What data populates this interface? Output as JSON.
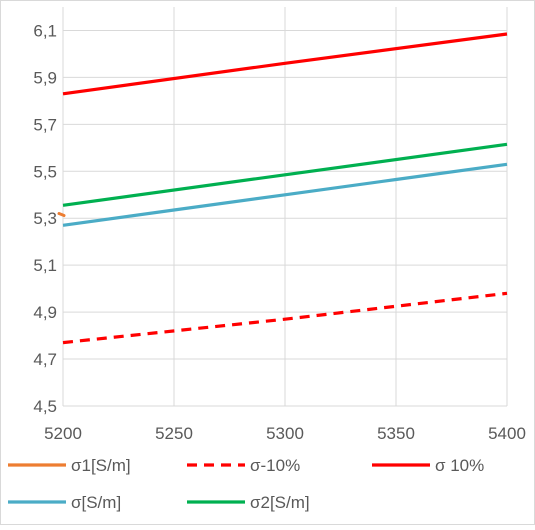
{
  "chart_data": {
    "type": "line",
    "title": "",
    "xlabel": "",
    "ylabel": "",
    "xlim": [
      5200,
      5400
    ],
    "ylim": [
      4.5,
      6.2
    ],
    "grid": true,
    "legend_position": "bottom",
    "x_ticks": [
      5200,
      5250,
      5300,
      5350,
      5400
    ],
    "x_tick_labels": [
      "5200",
      "5250",
      "5300",
      "5350",
      "5400"
    ],
    "y_ticks": [
      4.5,
      4.7,
      4.9,
      5.1,
      5.3,
      5.5,
      5.7,
      5.9,
      6.1
    ],
    "y_tick_labels": [
      "4,5",
      "4,7",
      "4,9",
      "5,1",
      "5,3",
      "5,5",
      "5,7",
      "5,9",
      "6,1"
    ],
    "series": [
      {
        "name": "σ1[S/m]",
        "color": "#ED7D31",
        "style": "solid",
        "x": [
          5200
        ],
        "y": [
          5.32
        ]
      },
      {
        "name": "σ-10%",
        "color": "#FF0000",
        "style": "dashed",
        "x": [
          5200,
          5300,
          5400
        ],
        "y": [
          4.77,
          4.87,
          4.98
        ]
      },
      {
        "name": "σ 10%",
        "color": "#FF0000",
        "style": "solid",
        "x": [
          5200,
          5300,
          5400
        ],
        "y": [
          5.83,
          5.96,
          6.085
        ]
      },
      {
        "name": "σ[S/m]",
        "color": "#4BACC6",
        "style": "solid",
        "x": [
          5200,
          5250,
          5300,
          5350,
          5400
        ],
        "y": [
          5.27,
          5.335,
          5.4,
          5.465,
          5.53
        ]
      },
      {
        "name": "σ2[S/m]",
        "color": "#00B050",
        "style": "solid",
        "x": [
          5200,
          5300,
          5400
        ],
        "y": [
          5.355,
          5.485,
          5.615
        ]
      }
    ]
  }
}
